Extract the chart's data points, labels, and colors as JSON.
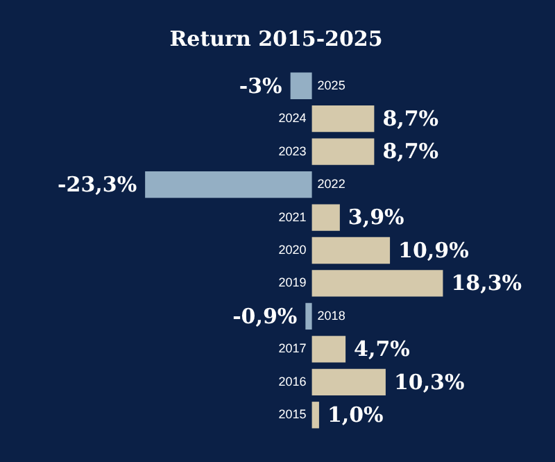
{
  "chart_data": {
    "type": "bar",
    "orientation": "horizontal",
    "title": "Return 2015-2025",
    "categories": [
      "2025",
      "2024",
      "2023",
      "2022",
      "2021",
      "2020",
      "2019",
      "2018",
      "2017",
      "2016",
      "2015"
    ],
    "values": [
      -3,
      8.7,
      8.7,
      -23.3,
      3.9,
      10.9,
      18.3,
      -0.9,
      4.7,
      10.3,
      1.0
    ],
    "value_labels": [
      "-3%",
      "8,7%",
      "8,7%",
      "-23,3%",
      "3,9%",
      "10,9%",
      "18,3%",
      "-0,9%",
      "4,7%",
      "10,3%",
      "1,0%"
    ],
    "colors": [
      "#94afc4",
      "#d5c9ab",
      "#d5c9ab",
      "#94afc4",
      "#d5c9ab",
      "#d5c9ab",
      "#d5c9ab",
      "#94afc4",
      "#d5c9ab",
      "#d5c9ab",
      "#d5c9ab"
    ],
    "tick_labels": "y",
    "legend": false
  }
}
